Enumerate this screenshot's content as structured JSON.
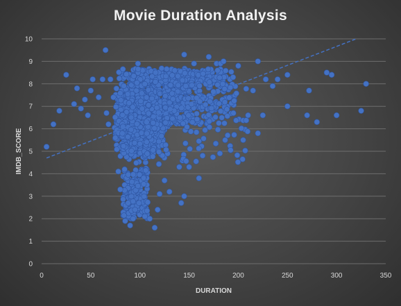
{
  "chart_data": {
    "type": "scatter",
    "title": "Movie Duration Analysis",
    "xlabel": "DURATION",
    "ylabel": "IMDB_SCORE",
    "xlim": [
      0,
      350
    ],
    "ylim": [
      0,
      10
    ],
    "x_ticks": [
      0,
      50,
      100,
      150,
      200,
      250,
      300,
      350
    ],
    "y_ticks": [
      0,
      1,
      2,
      3,
      4,
      5,
      6,
      7,
      8,
      9,
      10
    ],
    "grid": true,
    "legend": "none",
    "marker_color": "#4472c4",
    "trendline": {
      "type": "linear",
      "color": "#4472c4",
      "style": "dashed",
      "points": [
        [
          5,
          4.7
        ],
        [
          320,
          10
        ]
      ]
    },
    "dense_cluster": {
      "x_range": [
        75,
        200
      ],
      "y_center": 6.5,
      "approx_points": 4400
    },
    "outliers": [
      [
        5,
        5.2
      ],
      [
        12,
        6.2
      ],
      [
        18,
        6.8
      ],
      [
        25,
        8.4
      ],
      [
        33,
        7.1
      ],
      [
        36,
        7.8
      ],
      [
        40,
        6.9
      ],
      [
        44,
        7.3
      ],
      [
        47,
        6.6
      ],
      [
        50,
        7.7
      ],
      [
        52,
        8.2
      ],
      [
        58,
        7.4
      ],
      [
        62,
        8.2
      ],
      [
        65,
        9.5
      ],
      [
        66,
        6.7
      ],
      [
        68,
        6.2
      ],
      [
        70,
        8.2
      ],
      [
        73,
        7.4
      ],
      [
        75,
        5.6
      ],
      [
        78,
        4.1
      ],
      [
        80,
        3.3
      ],
      [
        85,
        1.9
      ],
      [
        88,
        2.7
      ],
      [
        90,
        1.7
      ],
      [
        93,
        2.0
      ],
      [
        95,
        2.4
      ],
      [
        98,
        8.9
      ],
      [
        105,
        2.1
      ],
      [
        110,
        2.0
      ],
      [
        115,
        1.6
      ],
      [
        118,
        2.4
      ],
      [
        120,
        3.1
      ],
      [
        125,
        3.7
      ],
      [
        130,
        3.2
      ],
      [
        140,
        4.3
      ],
      [
        142,
        2.7
      ],
      [
        145,
        3.0
      ],
      [
        150,
        4.3
      ],
      [
        145,
        9.3
      ],
      [
        155,
        8.9
      ],
      [
        160,
        3.8
      ],
      [
        170,
        9.2
      ],
      [
        178,
        8.9
      ],
      [
        182,
        8.9
      ],
      [
        185,
        9.0
      ],
      [
        200,
        8.8
      ],
      [
        205,
        5.5
      ],
      [
        210,
        6.6
      ],
      [
        215,
        7.7
      ],
      [
        220,
        9.0
      ],
      [
        220,
        5.8
      ],
      [
        225,
        6.6
      ],
      [
        228,
        8.2
      ],
      [
        235,
        7.9
      ],
      [
        240,
        8.2
      ],
      [
        250,
        8.4
      ],
      [
        250,
        7.0
      ],
      [
        270,
        6.6
      ],
      [
        272,
        7.7
      ],
      [
        280,
        6.3
      ],
      [
        290,
        8.5
      ],
      [
        295,
        8.4
      ],
      [
        300,
        6.6
      ],
      [
        325,
        6.8
      ],
      [
        330,
        8.0
      ]
    ]
  }
}
